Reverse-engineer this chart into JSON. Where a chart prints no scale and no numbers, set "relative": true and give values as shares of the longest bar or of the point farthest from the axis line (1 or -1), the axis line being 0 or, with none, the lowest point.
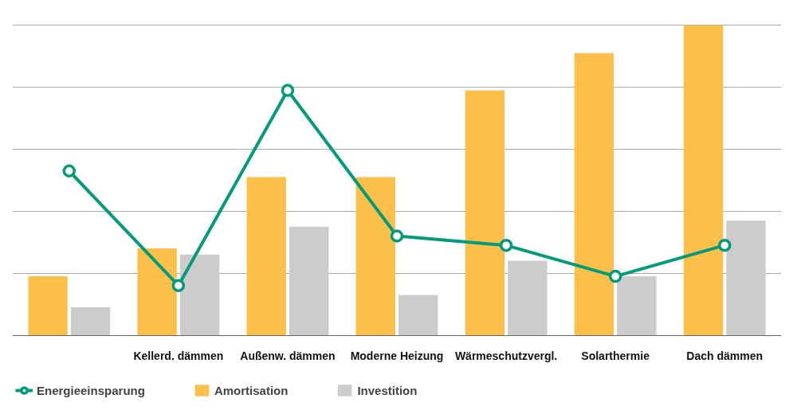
{
  "chart_data": {
    "type": "bar",
    "relative": true,
    "grid": "y",
    "legend": "bottom left",
    "marker": "circle",
    "categories": [
      null,
      "Kellerd. dämmen",
      "Außenw. dämmen",
      "Moderne Heizung",
      "Wärmeschutzvergl.",
      "Solarthermie",
      "Dach dämmen"
    ],
    "series": [
      {
        "name": "Energieeinsparung",
        "type": "line",
        "color": "#009a7c",
        "values": [
          0.53,
          0.16,
          0.79,
          0.32,
          0.29,
          0.19,
          0.29
        ]
      },
      {
        "name": "Amortisation",
        "color": "#fcbf49",
        "values": [
          0.19,
          0.28,
          0.51,
          0.51,
          0.79,
          0.91,
          1.0
        ]
      },
      {
        "name": "Investition",
        "color": "#cccccc",
        "values": [
          0.09,
          0.26,
          0.35,
          0.13,
          0.24,
          0.19,
          0.37
        ]
      }
    ]
  }
}
